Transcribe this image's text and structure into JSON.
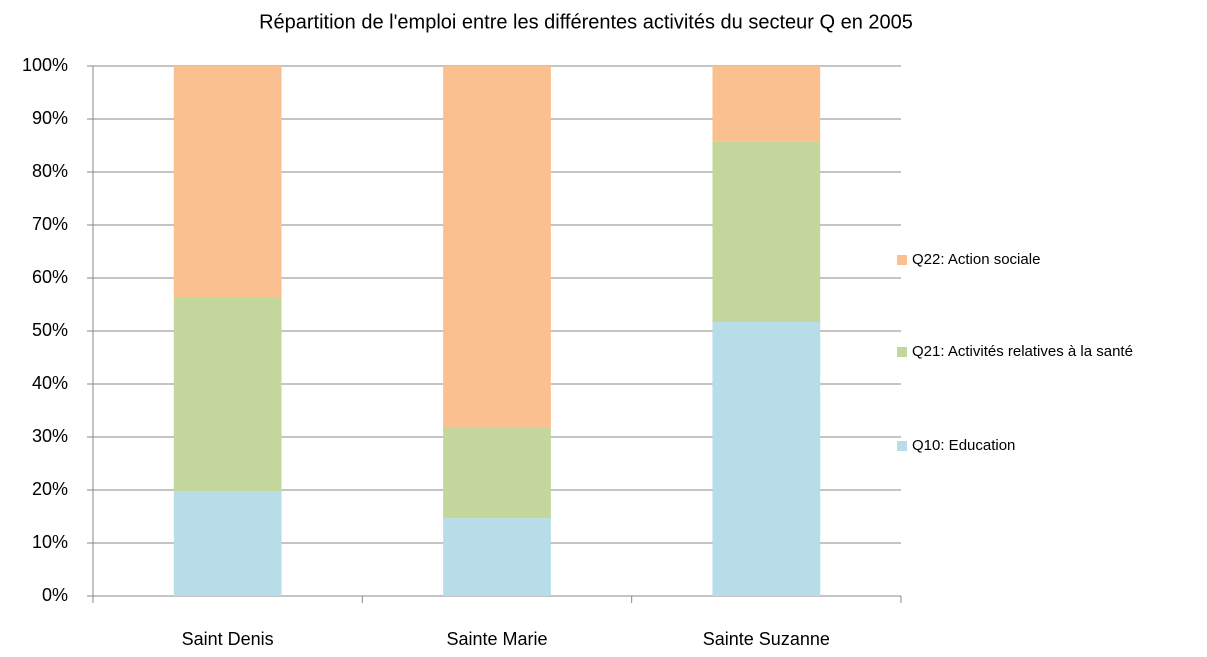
{
  "chart_data": {
    "type": "stacked_bar_percent",
    "title": "Répartition de l'emploi entre les différentes activités du secteur Q en 2005",
    "categories": [
      "Saint Denis",
      "Sainte Marie",
      "Sainte Suzanne"
    ],
    "series": [
      {
        "name": "Q10: Education",
        "color": "#b7dde8",
        "values": [
          19.8,
          14.7,
          51.7
        ]
      },
      {
        "name": "Q21: Activités relatives à la santé",
        "color": "#c3d69b",
        "values": [
          36.6,
          17.0,
          34.1
        ]
      },
      {
        "name": "Q22: Action sociale",
        "color": "#fac090",
        "values": [
          43.6,
          68.3,
          14.2
        ]
      }
    ],
    "ylim": [
      0,
      100
    ],
    "yticks": [
      {
        "value": 0,
        "label": "0%"
      },
      {
        "value": 10,
        "label": "10%"
      },
      {
        "value": 20,
        "label": "20%"
      },
      {
        "value": 30,
        "label": "30%"
      },
      {
        "value": 40,
        "label": "40%"
      },
      {
        "value": 50,
        "label": "50%"
      },
      {
        "value": 60,
        "label": "60%"
      },
      {
        "value": 70,
        "label": "70%"
      },
      {
        "value": 80,
        "label": "80%"
      },
      {
        "value": 90,
        "label": "90%"
      },
      {
        "value": 100,
        "label": "100%"
      }
    ],
    "grid": true,
    "legend": "right"
  }
}
